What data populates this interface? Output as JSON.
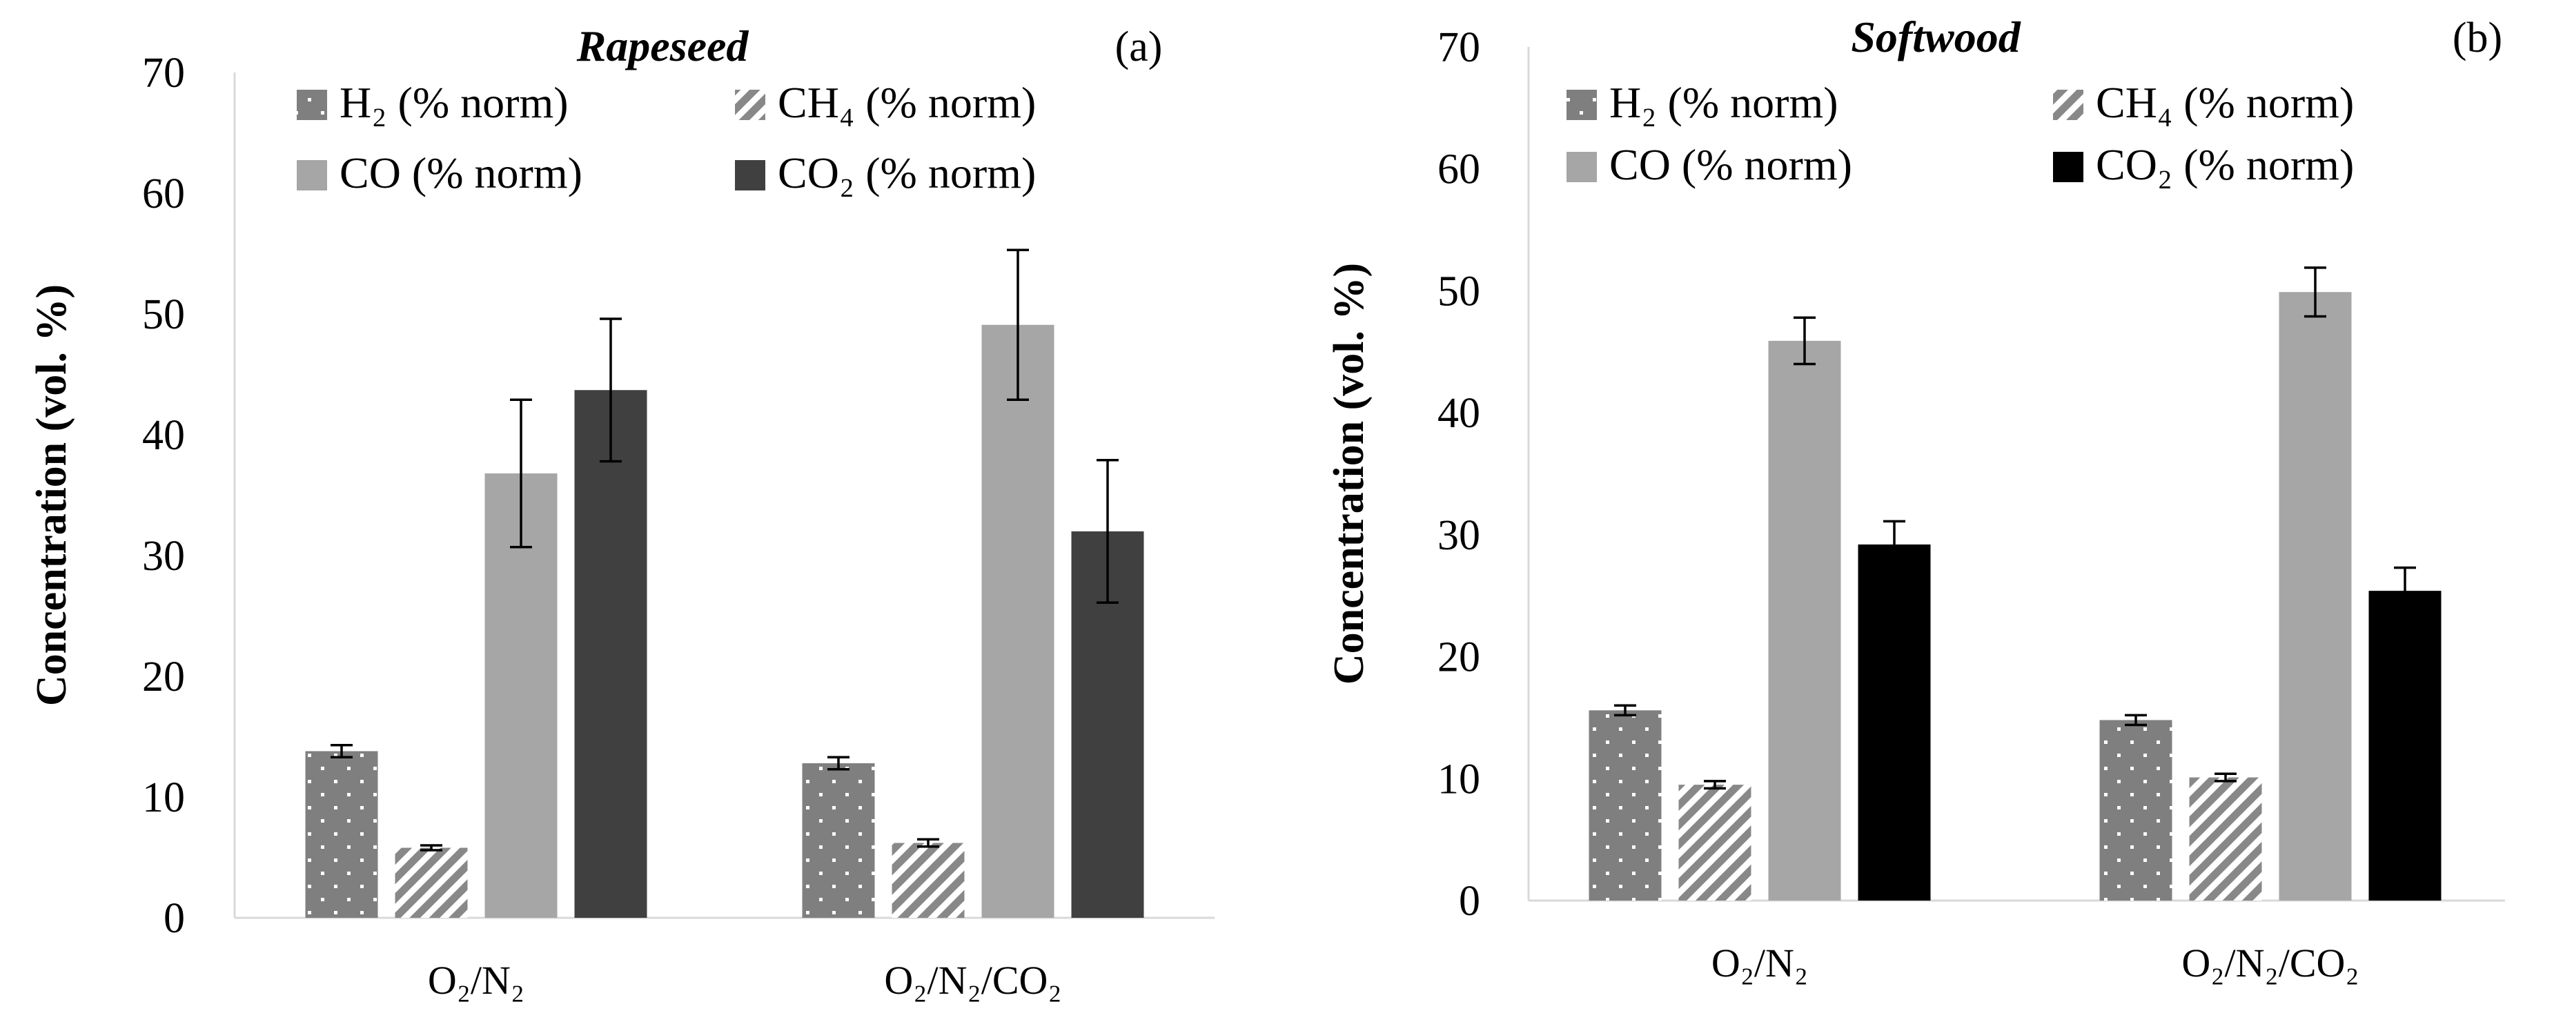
{
  "figure": {
    "colors": {
      "H2": "#7f7f7f",
      "CH4_stripe": "#888888",
      "CO": "#a6a6a6",
      "CO2_a": "#404040",
      "CO2_b": "#000000"
    }
  },
  "chart_data": [
    {
      "type": "bar",
      "title": "Rapeseed",
      "tag": "(a)",
      "ylabel": "Concentration (vol. %)",
      "xlabel": "",
      "ylim": [
        0,
        70
      ],
      "y_ticks": [
        "0",
        "10",
        "20",
        "30",
        "40",
        "50",
        "60",
        "70"
      ],
      "grid": false,
      "legend_position": "top",
      "categories": [
        "O₂/N₂",
        "O₂/N₂/CO₂"
      ],
      "series": [
        {
          "name": "H₂ (% norm)",
          "values": [
            13.8,
            12.8
          ],
          "errors": [
            0.5,
            0.5
          ],
          "pattern": "dots",
          "color": "#7f7f7f"
        },
        {
          "name": "CH₄ (% norm)",
          "values": [
            5.8,
            6.2
          ],
          "errors": [
            0.2,
            0.3
          ],
          "pattern": "stripes",
          "color": "#888888"
        },
        {
          "name": "CO (% norm)",
          "values": [
            36.8,
            49.1
          ],
          "errors": [
            6.1,
            6.2
          ],
          "pattern": "solid",
          "color": "#a6a6a6"
        },
        {
          "name": "CO₂ (% norm)",
          "values": [
            43.7,
            32.0
          ],
          "errors": [
            5.9,
            5.9
          ],
          "pattern": "solid",
          "color": "#404040"
        }
      ]
    },
    {
      "type": "bar",
      "title": "Softwood",
      "tag": "(b)",
      "ylabel": "Concentration (vol. %)",
      "xlabel": "",
      "ylim": [
        0,
        70
      ],
      "y_ticks": [
        "0",
        "10",
        "20",
        "30",
        "40",
        "50",
        "60",
        "70"
      ],
      "grid": false,
      "legend_position": "top",
      "categories": [
        "O₂/N₂",
        "O₂/N₂/CO₂"
      ],
      "series": [
        {
          "name": "H₂ (% norm)",
          "values": [
            15.6,
            14.8
          ],
          "errors": [
            0.4,
            0.4
          ],
          "pattern": "dots",
          "color": "#7f7f7f"
        },
        {
          "name": "CH₄ (% norm)",
          "values": [
            9.5,
            10.1
          ],
          "errors": [
            0.3,
            0.3
          ],
          "pattern": "stripes",
          "color": "#888888"
        },
        {
          "name": "CO (% norm)",
          "values": [
            45.9,
            49.9
          ],
          "errors": [
            1.9,
            2.0
          ],
          "pattern": "solid",
          "color": "#a6a6a6"
        },
        {
          "name": "CO₂ (% norm)",
          "values": [
            29.2,
            25.4
          ],
          "errors": [
            1.9,
            1.9
          ],
          "pattern": "solid",
          "color": "#000000"
        }
      ]
    }
  ]
}
